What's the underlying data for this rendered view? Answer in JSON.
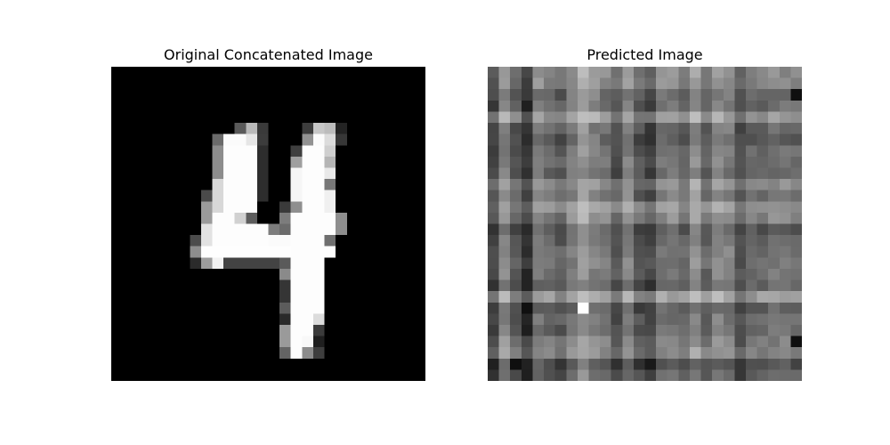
{
  "figure": {
    "left_title": "Original Concatenated Image",
    "right_title": "Predicted Image"
  },
  "images": {
    "left": {
      "description_id": "mnist-digit-4-original",
      "grid": 28,
      "background_color": "#000000"
    },
    "right": {
      "description_id": "noisy-predicted-reconstruction",
      "grid": 28,
      "background_color": "#6a6a6a"
    }
  },
  "colors": {
    "text": "#000000",
    "page_background": "#ffffff"
  }
}
